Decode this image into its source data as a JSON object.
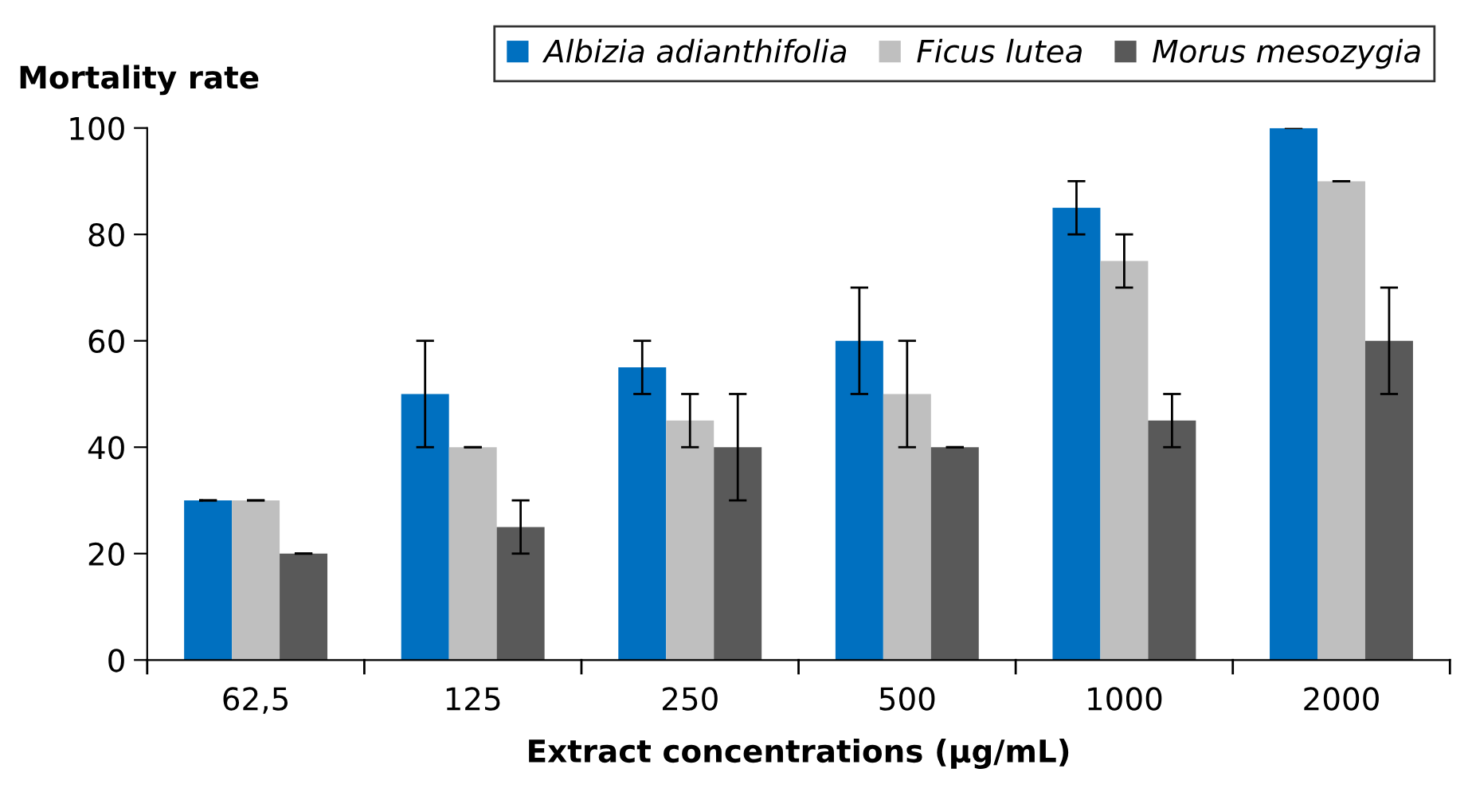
{
  "chart_data": {
    "type": "bar",
    "ylabel": "Mortality rate",
    "xlabel": "Extract concentrations (µg/mL)",
    "categories": [
      "62,5",
      "125",
      "250",
      "500",
      "1000",
      "2000"
    ],
    "series": [
      {
        "name": "Albizia adianthifolia",
        "color": "#0070c0",
        "values": [
          30,
          50,
          55,
          60,
          85,
          100
        ],
        "errors": [
          0,
          10,
          5,
          10,
          5,
          0
        ]
      },
      {
        "name": "Ficus lutea",
        "color": "#bfbfbf",
        "values": [
          30,
          40,
          45,
          50,
          75,
          90
        ],
        "errors": [
          0,
          0,
          5,
          10,
          5,
          0
        ]
      },
      {
        "name": "Morus mesozygia",
        "color": "#595959",
        "values": [
          20,
          25,
          40,
          40,
          45,
          60
        ],
        "errors": [
          0,
          5,
          10,
          0,
          5,
          10
        ]
      }
    ],
    "ylim": [
      0,
      100
    ],
    "yticks": [
      0,
      20,
      40,
      60,
      80,
      100
    ],
    "grid": false,
    "legend": "top"
  }
}
